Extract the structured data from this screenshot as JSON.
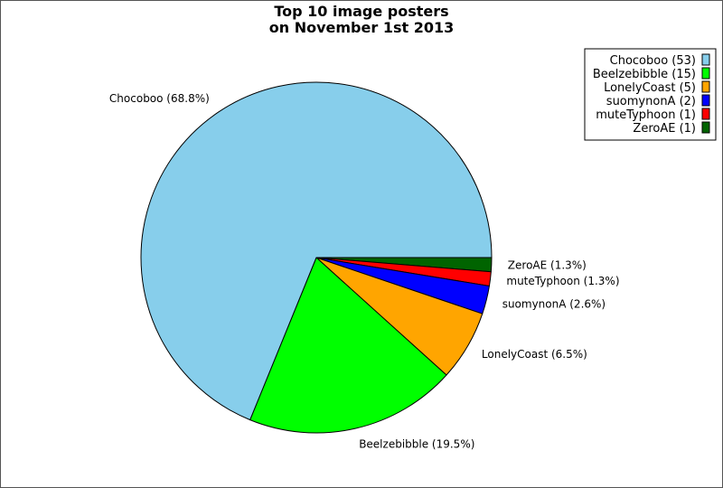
{
  "chart_data": {
    "type": "pie",
    "title": "Top 10 image posters\non November 1st 2013",
    "start_angle_deg": 0,
    "direction": "clockwise",
    "slices": [
      {
        "name": "ZeroAE",
        "value": 1,
        "label": "ZeroAE (1.3%)",
        "legend": "ZeroAE (1)",
        "color": "#006400"
      },
      {
        "name": "muteTyphoon",
        "value": 1,
        "label": "muteTyphoon (1.3%)",
        "legend": "muteTyphoon (1)",
        "color": "#ff0000"
      },
      {
        "name": "suomynonA",
        "value": 2,
        "label": "suomynonA (2.6%)",
        "legend": "suomynonA (2)",
        "color": "#0000ff"
      },
      {
        "name": "LonelyCoast",
        "value": 5,
        "label": "LonelyCoast (6.5%)",
        "legend": "LonelyCoast (5)",
        "color": "#ffa500"
      },
      {
        "name": "Beelzebibble",
        "value": 15,
        "label": "Beelzebibble (19.5%)",
        "legend": "Beelzebibble (15)",
        "color": "#00ff00"
      },
      {
        "name": "Chocoboo",
        "value": 53,
        "label": "Chocoboo (68.8%)",
        "legend": "Chocoboo (53)",
        "color": "#87ceeb"
      }
    ],
    "legend_order": [
      "Chocoboo",
      "Beelzebibble",
      "LonelyCoast",
      "suomynonA",
      "muteTyphoon",
      "ZeroAE"
    ],
    "legend_position": "top-right"
  }
}
